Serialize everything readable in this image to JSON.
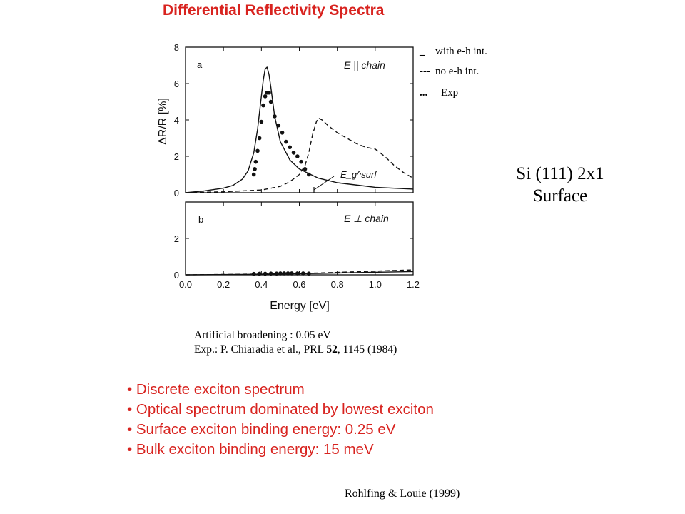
{
  "title": "Differential Reflectivity Spectra",
  "side_label": {
    "line1": "Si (111) 2x1",
    "line2": "Surface"
  },
  "legend": [
    {
      "symbol": "_",
      "text": "with e-h int."
    },
    {
      "symbol": "---",
      "text": "no e-h int."
    },
    {
      "symbol": "...",
      "text": "Exp"
    }
  ],
  "notes": {
    "broadening_label": "Artificial broadening :",
    "broadening_value": "0.05 eV",
    "exp_prefix": "Exp.: P. Chiaradia et al., PRL",
    "exp_volume": "52",
    "exp_suffix": ", 1145 (1984)"
  },
  "bullets": [
    "Discrete exciton spectrum",
    "Optical spectrum dominated by lowest exciton",
    "Surface exciton binding energy: 0.25 eV",
    "Bulk exciton binding energy: 15 meV"
  ],
  "credit": "Rohlfing & Louie (1999)",
  "colors": {
    "title": "#d8231f",
    "bullets": "#d8231f",
    "chart_ink": "#111111"
  },
  "chart_data": [
    {
      "type": "line",
      "panel_label": "a",
      "annotation": "E || chain",
      "gap_label": "E_g^surf",
      "ylabel": "ΔR/R [%]",
      "xlim": [
        0.0,
        1.2
      ],
      "ylim": [
        0,
        8
      ],
      "yticks": [
        "0",
        "2",
        "4",
        "6",
        "8"
      ],
      "series": [
        {
          "style": "solid",
          "x": [
            0.0,
            0.1,
            0.2,
            0.25,
            0.3,
            0.33,
            0.36,
            0.38,
            0.4,
            0.41,
            0.42,
            0.43,
            0.44,
            0.45,
            0.47,
            0.5,
            0.55,
            0.6,
            0.7,
            0.8,
            1.0,
            1.2
          ],
          "y": [
            0.0,
            0.1,
            0.25,
            0.4,
            0.75,
            1.2,
            2.2,
            3.5,
            5.3,
            6.2,
            6.8,
            6.9,
            6.5,
            5.8,
            4.2,
            2.8,
            1.8,
            1.3,
            0.8,
            0.55,
            0.3,
            0.2
          ]
        },
        {
          "style": "dashed",
          "x": [
            0.0,
            0.2,
            0.4,
            0.5,
            0.55,
            0.6,
            0.63,
            0.65,
            0.67,
            0.69,
            0.7,
            0.72,
            0.75,
            0.8,
            0.85,
            0.9,
            0.95,
            1.0,
            1.05,
            1.1,
            1.15,
            1.2
          ],
          "y": [
            0.0,
            0.05,
            0.15,
            0.35,
            0.6,
            1.0,
            1.5,
            2.2,
            3.2,
            3.9,
            4.1,
            4.0,
            3.7,
            3.3,
            3.0,
            2.7,
            2.5,
            2.4,
            2.0,
            1.5,
            1.1,
            0.8
          ]
        },
        {
          "style": "dots",
          "x": [
            0.36,
            0.365,
            0.37,
            0.38,
            0.39,
            0.4,
            0.41,
            0.42,
            0.43,
            0.44,
            0.45,
            0.47,
            0.49,
            0.51,
            0.53,
            0.55,
            0.57,
            0.59,
            0.61,
            0.63,
            0.65
          ],
          "y": [
            1.0,
            1.3,
            1.7,
            2.3,
            3.0,
            3.9,
            4.8,
            5.3,
            5.5,
            5.5,
            5.0,
            4.2,
            3.7,
            3.3,
            2.8,
            2.5,
            2.2,
            2.0,
            1.7,
            1.3,
            1.0
          ]
        }
      ]
    },
    {
      "type": "line",
      "panel_label": "b",
      "annotation": "E ⊥ chain",
      "xlabel": "Energy [eV]",
      "xlim": [
        0.0,
        1.2
      ],
      "ylim": [
        0,
        4
      ],
      "xticks": [
        "0.0",
        "0.2",
        "0.4",
        "0.6",
        "0.8",
        "1.0",
        "1.2"
      ],
      "yticks": [
        "0",
        "2"
      ],
      "series": [
        {
          "style": "solid",
          "x": [
            0.0,
            0.3,
            0.5,
            0.7,
            0.9,
            1.1,
            1.2
          ],
          "y": [
            0.0,
            0.02,
            0.05,
            0.08,
            0.12,
            0.16,
            0.18
          ]
        },
        {
          "style": "dashed",
          "x": [
            0.0,
            0.3,
            0.5,
            0.7,
            0.9,
            1.1,
            1.2
          ],
          "y": [
            0.0,
            0.03,
            0.06,
            0.1,
            0.17,
            0.24,
            0.27
          ]
        },
        {
          "style": "dots",
          "x": [
            0.36,
            0.39,
            0.42,
            0.45,
            0.48,
            0.5,
            0.52,
            0.54,
            0.56,
            0.59,
            0.62,
            0.65
          ],
          "y": [
            0.05,
            0.06,
            0.06,
            0.07,
            0.07,
            0.08,
            0.08,
            0.08,
            0.08,
            0.08,
            0.08,
            0.07
          ]
        }
      ]
    }
  ]
}
